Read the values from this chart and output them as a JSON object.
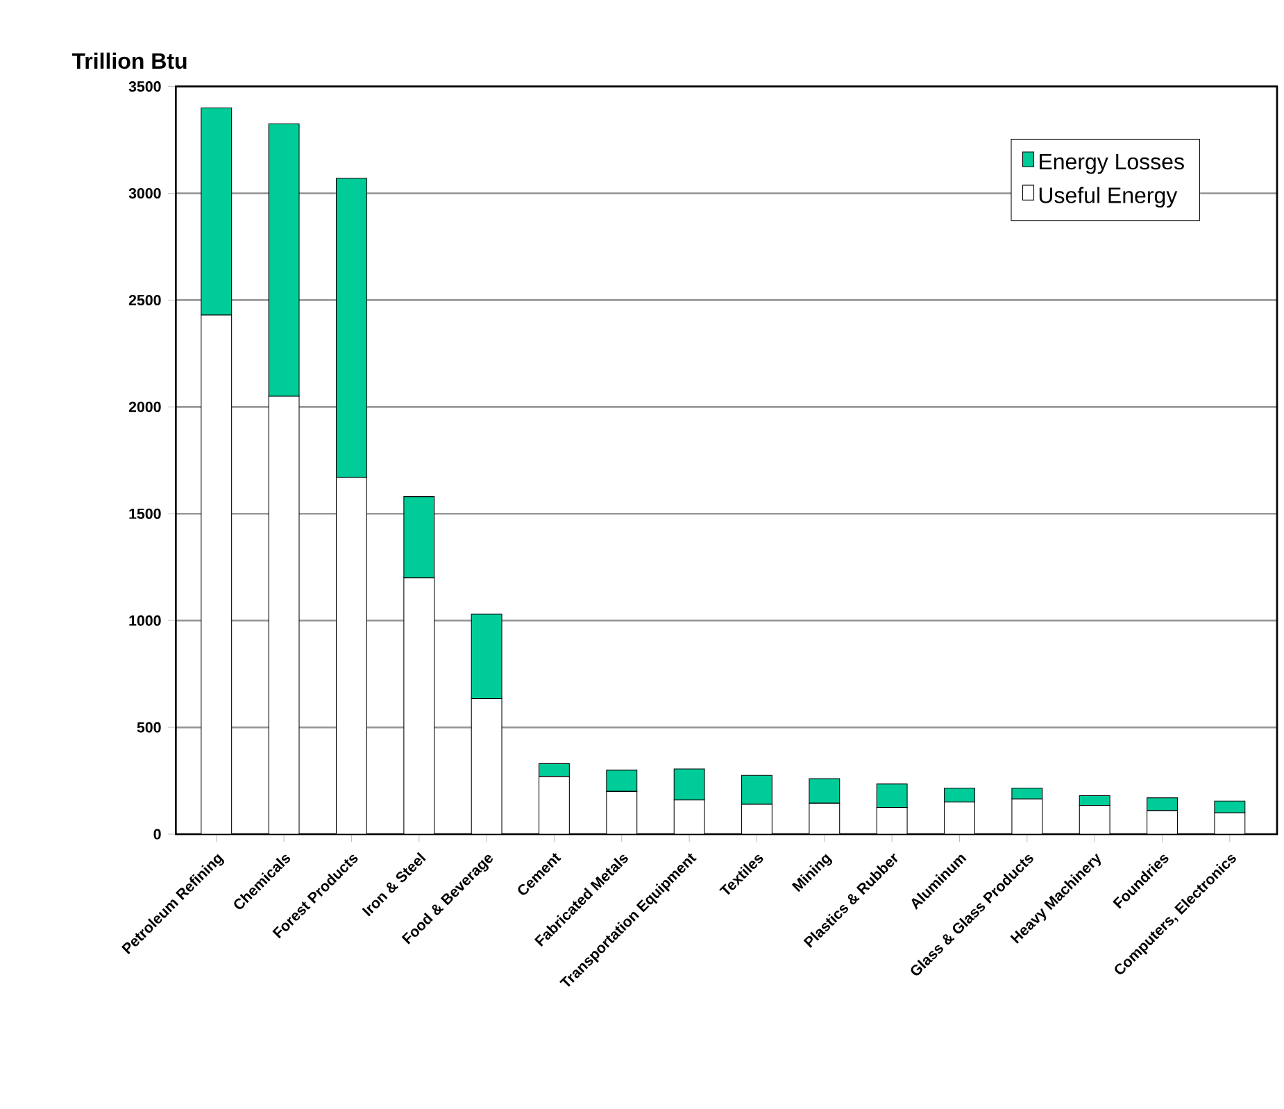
{
  "chart_data": {
    "type": "bar",
    "stacked": true,
    "ylabel": "Trillion Btu",
    "categories": [
      "Petroleum Refining",
      "Chemicals",
      "Forest Products",
      "Iron & Steel",
      "Food & Beverage",
      "Cement",
      "Fabricated Metals",
      "Transportation Equipment",
      "Textiles",
      "Mining",
      "Plastics & Rubber",
      "Aluminum",
      "Glass & Glass Products",
      "Heavy Machinery",
      "Foundries",
      "Computers, Electronics"
    ],
    "series": [
      {
        "name": "Useful Energy",
        "color": "#ffffff",
        "values": [
          2430,
          2050,
          1670,
          1200,
          635,
          270,
          200,
          160,
          140,
          145,
          125,
          150,
          165,
          135,
          110,
          100
        ]
      },
      {
        "name": "Energy Losses",
        "color": "#00cc99",
        "values": [
          970,
          1275,
          1400,
          380,
          395,
          60,
          100,
          145,
          135,
          115,
          110,
          65,
          50,
          45,
          60,
          55
        ]
      }
    ],
    "ylim": [
      0,
      3500
    ],
    "yticks": [
      0,
      500,
      1000,
      1500,
      2000,
      2500,
      3000,
      3500
    ],
    "grid": "y",
    "legend": "top right"
  }
}
